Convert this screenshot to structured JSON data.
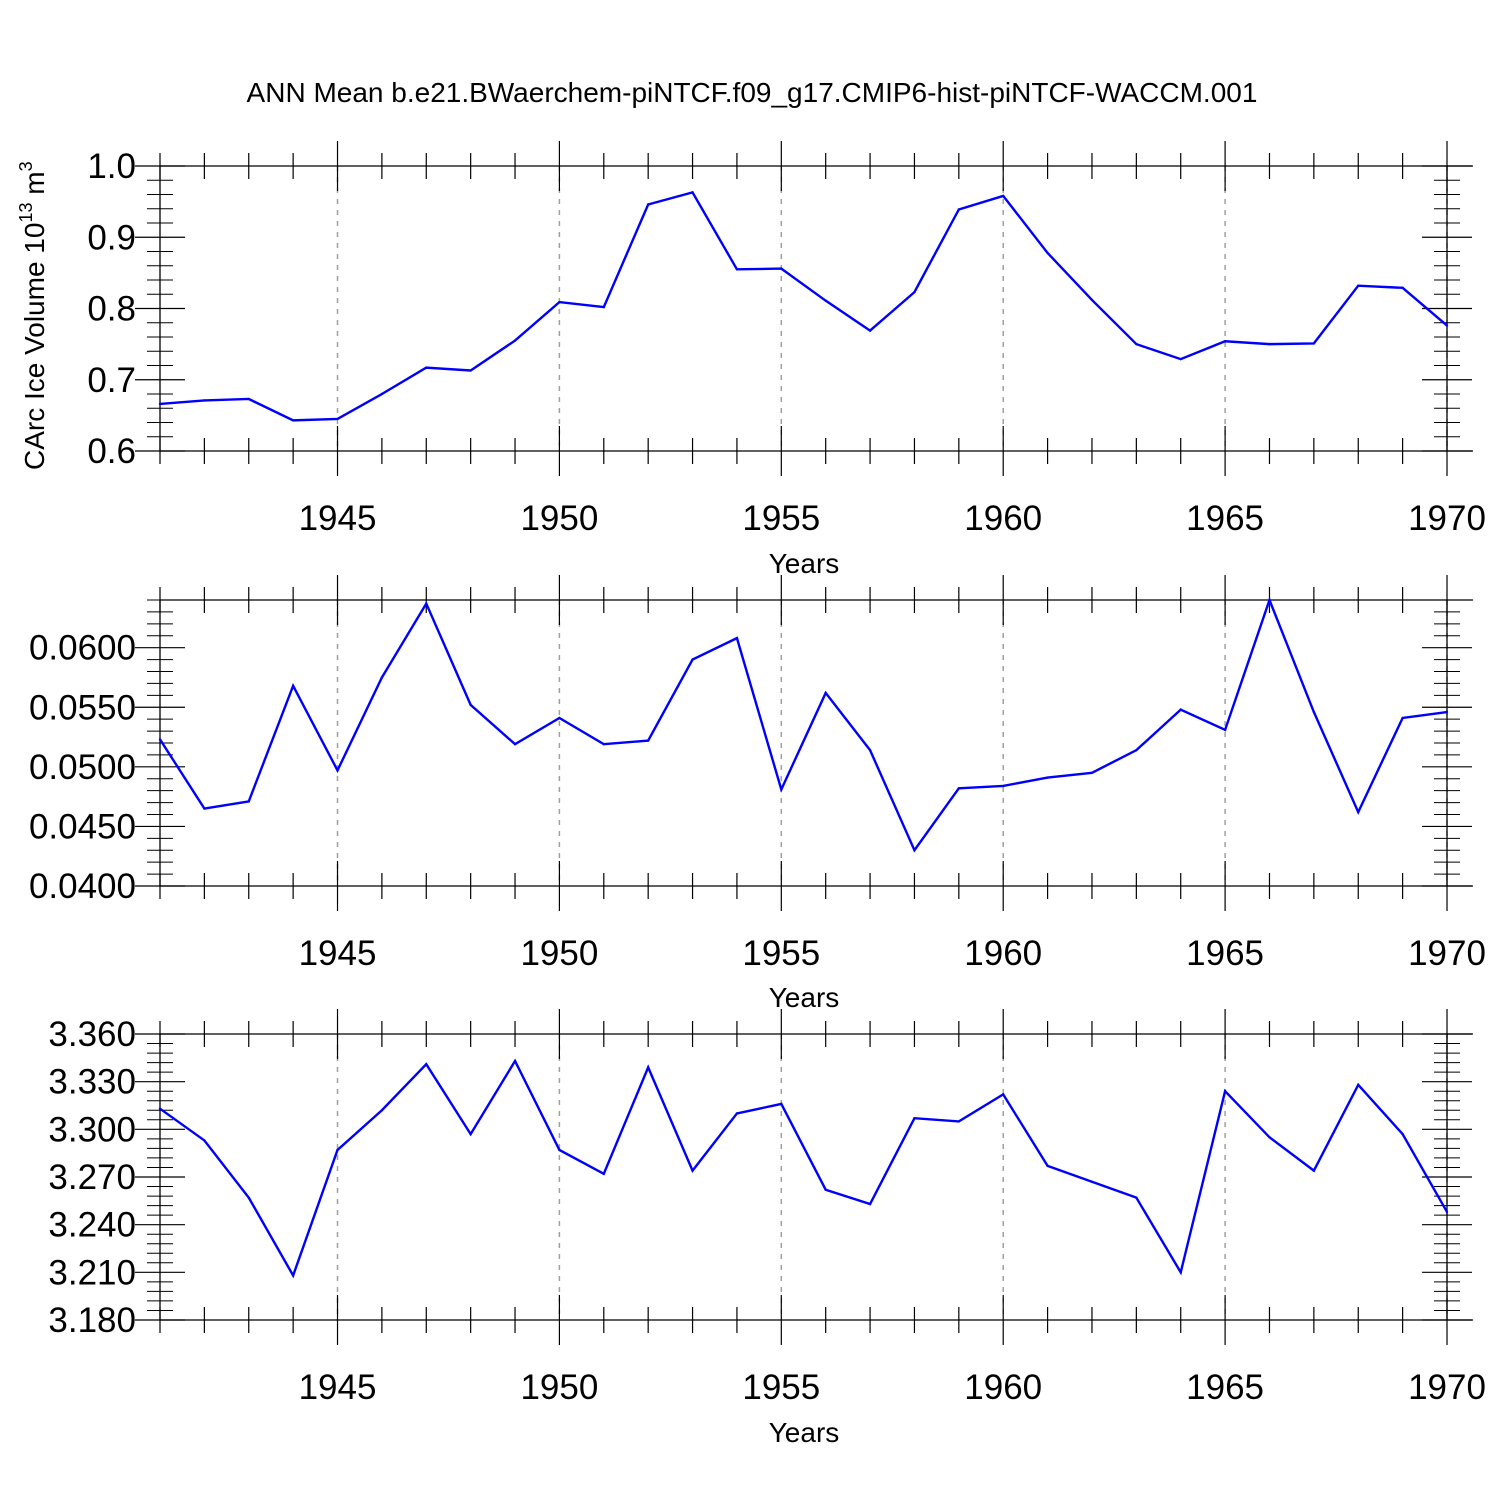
{
  "chart_data": [
    {
      "type": "line",
      "title": "ANN Mean b.e21.BWaerchem-piNTCF.f09_g17.CMIP6-hist-piNTCF-WACCM.001",
      "xlabel": "Years",
      "ylabel_main": "CArc Ice Volume 10",
      "ylabel_exp": "13",
      "ylabel_unit": "m",
      "ylabel_unit_exp": "3",
      "x": [
        1941,
        1942,
        1943,
        1944,
        1945,
        1946,
        1947,
        1948,
        1949,
        1950,
        1951,
        1952,
        1953,
        1954,
        1955,
        1956,
        1957,
        1958,
        1959,
        1960,
        1961,
        1962,
        1963,
        1964,
        1965,
        1966,
        1967,
        1968,
        1969,
        1970
      ],
      "xlim": [
        1941,
        1970
      ],
      "ylim": [
        0.6,
        1.0
      ],
      "xticks": [
        1945,
        1950,
        1955,
        1960,
        1965,
        1970
      ],
      "ytick_values": [
        0.6,
        0.7,
        0.8,
        0.9,
        1.0
      ],
      "ytick_labels": [
        "0.6",
        "0.7",
        "0.8",
        "0.9",
        "1.0"
      ],
      "series": [
        {
          "name": "CArc Ice Volume",
          "color": "#0000ff",
          "values": [
            0.666,
            0.671,
            0.673,
            0.643,
            0.645,
            0.68,
            0.717,
            0.713,
            0.755,
            0.809,
            0.802,
            0.946,
            0.963,
            0.855,
            0.856,
            0.811,
            0.769,
            0.823,
            0.939,
            0.958,
            0.878,
            0.812,
            0.75,
            0.729,
            0.754,
            0.75,
            0.751,
            0.832,
            0.829,
            0.776
          ]
        }
      ]
    },
    {
      "type": "line",
      "xlabel": "Years",
      "x": [
        1941,
        1942,
        1943,
        1944,
        1945,
        1946,
        1947,
        1948,
        1949,
        1950,
        1951,
        1952,
        1953,
        1954,
        1955,
        1956,
        1957,
        1958,
        1959,
        1960,
        1961,
        1962,
        1963,
        1964,
        1965,
        1966,
        1967,
        1968,
        1969,
        1970
      ],
      "xlim": [
        1941,
        1970
      ],
      "ylim": [
        0.04,
        0.064
      ],
      "xticks": [
        1945,
        1950,
        1955,
        1960,
        1965,
        1970
      ],
      "ytick_values": [
        0.04,
        0.045,
        0.05,
        0.055,
        0.06
      ],
      "ytick_labels": [
        "0.0400",
        "0.0450",
        "0.0500",
        "0.0550",
        "0.0600"
      ],
      "series": [
        {
          "name": "series-2",
          "color": "#0000ff",
          "values": [
            0.0523,
            0.0465,
            0.0471,
            0.0568,
            0.0497,
            0.0575,
            0.0637,
            0.0552,
            0.0519,
            0.0541,
            0.0519,
            0.0522,
            0.059,
            0.0608,
            0.0481,
            0.0562,
            0.0514,
            0.043,
            0.0482,
            0.0484,
            0.0491,
            0.0495,
            0.0514,
            0.0548,
            0.0531,
            0.064,
            0.0546,
            0.0462,
            0.0541,
            0.0546
          ]
        }
      ]
    },
    {
      "type": "line",
      "xlabel": "Years",
      "x": [
        1941,
        1942,
        1943,
        1944,
        1945,
        1946,
        1947,
        1948,
        1949,
        1950,
        1951,
        1952,
        1953,
        1954,
        1955,
        1956,
        1957,
        1958,
        1959,
        1960,
        1961,
        1962,
        1963,
        1964,
        1965,
        1966,
        1967,
        1968,
        1969,
        1970
      ],
      "xlim": [
        1941,
        1970
      ],
      "ylim": [
        3.18,
        3.36
      ],
      "xticks": [
        1945,
        1950,
        1955,
        1960,
        1965,
        1970
      ],
      "ytick_values": [
        3.18,
        3.21,
        3.24,
        3.27,
        3.3,
        3.33,
        3.36
      ],
      "ytick_labels": [
        "3.180",
        "3.210",
        "3.240",
        "3.270",
        "3.300",
        "3.330",
        "3.360"
      ],
      "series": [
        {
          "name": "series-3",
          "color": "#0000ff",
          "values": [
            3.313,
            3.293,
            3.257,
            3.208,
            3.287,
            3.312,
            3.341,
            3.297,
            3.343,
            3.287,
            3.272,
            3.339,
            3.274,
            3.31,
            3.316,
            3.262,
            3.253,
            3.307,
            3.305,
            3.322,
            3.277,
            3.267,
            3.257,
            3.21,
            3.324,
            3.295,
            3.274,
            3.328,
            3.297,
            3.248
          ]
        }
      ]
    }
  ]
}
